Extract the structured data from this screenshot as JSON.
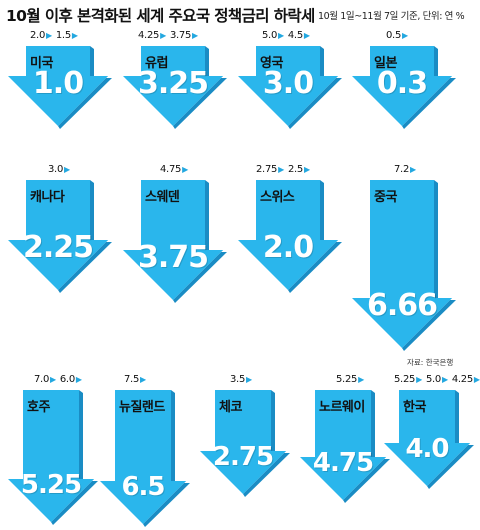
{
  "header": {
    "title": "10월 이후 본격화된 세계 주요국 정책금리 하락세",
    "subtitle": "10월 1일~11월 7일 기준, 단위: 연 %"
  },
  "source": "자료: 한국은행",
  "colors": {
    "arrow": "#2ab6ec",
    "shade": "#1a8cc4",
    "marker": "#23a8e0"
  },
  "cards": [
    {
      "country": "미국",
      "history": [
        "2.0",
        "1.5"
      ],
      "rate": "1.0"
    },
    {
      "country": "유럽",
      "history": [
        "4.25",
        "3.75"
      ],
      "rate": "3.25"
    },
    {
      "country": "영국",
      "history": [
        "5.0",
        "4.5"
      ],
      "rate": "3.0"
    },
    {
      "country": "일본",
      "history": [
        "0.5"
      ],
      "rate": "0.3"
    },
    {
      "country": "캐나다",
      "history": [
        "3.0"
      ],
      "rate": "2.25"
    },
    {
      "country": "스웨덴",
      "history": [
        "4.75"
      ],
      "rate": "3.75"
    },
    {
      "country": "스위스",
      "history": [
        "2.75",
        "2.5"
      ],
      "rate": "2.0"
    },
    {
      "country": "중국",
      "history": [
        "7.2"
      ],
      "rate": "6.66"
    },
    {
      "country": "호주",
      "history": [
        "7.0",
        "6.0"
      ],
      "rate": "5.25"
    },
    {
      "country": "뉴질랜드",
      "history": [
        "7.5"
      ],
      "rate": "6.5"
    },
    {
      "country": "체코",
      "history": [
        "3.5"
      ],
      "rate": "2.75"
    },
    {
      "country": "노르웨이",
      "history": [
        "5.25"
      ],
      "rate": "4.75"
    },
    {
      "country": "한국",
      "history": [
        "5.25",
        "5.0",
        "4.25"
      ],
      "rate": "4.0"
    }
  ]
}
